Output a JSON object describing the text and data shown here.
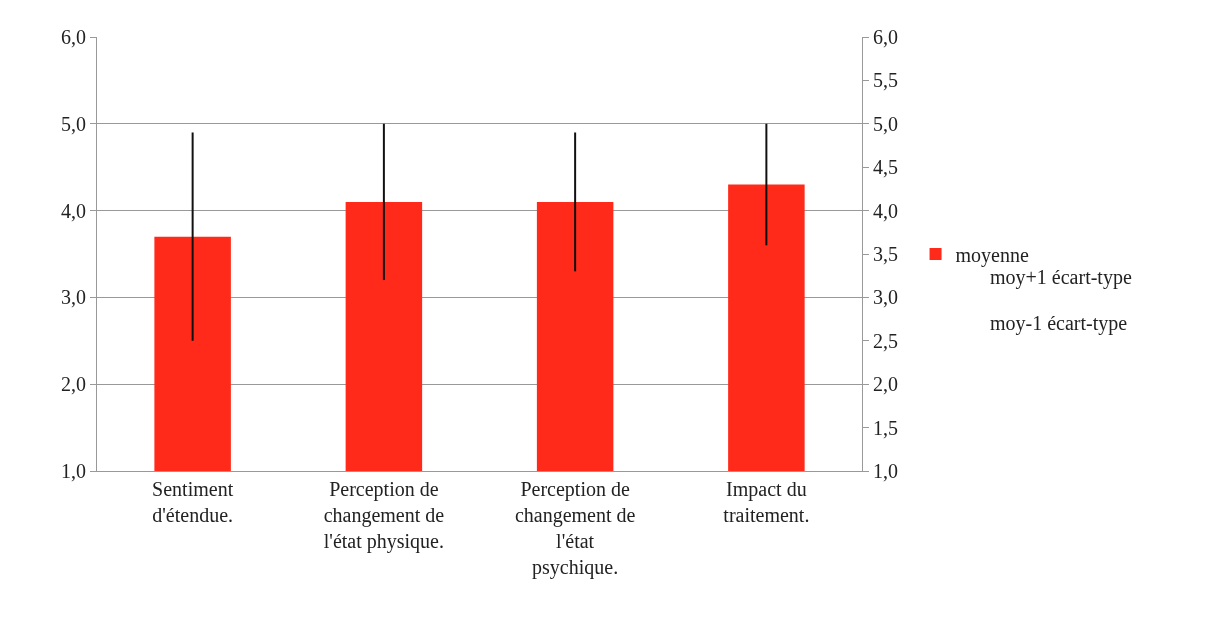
{
  "chart_data": {
    "type": "bar",
    "categories": [
      "Sentiment d'étendue.",
      "Perception de changement de l'état physique.",
      "Perception de changement de l'état psychique.",
      "Impact du traitement."
    ],
    "series": [
      {
        "name": "moyenne",
        "color": "#ff2a1a",
        "values": [
          3.7,
          4.1,
          4.1,
          4.3
        ],
        "errors": [
          [
            2.5,
            4.9
          ],
          [
            3.2,
            5.0
          ],
          [
            3.3,
            4.9
          ],
          [
            3.6,
            5.0
          ]
        ]
      }
    ],
    "ylim": [
      1,
      6
    ],
    "yticks": [
      {
        "value": 1,
        "label": "1,0"
      },
      {
        "value": 2,
        "label": "2,0"
      },
      {
        "value": 3,
        "label": "3,0"
      },
      {
        "value": 4,
        "label": "4,0"
      },
      {
        "value": 5,
        "label": "5,0"
      },
      {
        "value": 6,
        "label": "6,0"
      }
    ],
    "y2lim": [
      1,
      6
    ],
    "y2ticks": [
      {
        "value": 1,
        "label": "1,0"
      },
      {
        "value": 1.5,
        "label": "1,5"
      },
      {
        "value": 2,
        "label": "2,0"
      },
      {
        "value": 2.5,
        "label": "2,5"
      },
      {
        "value": 3,
        "label": "3,0"
      },
      {
        "value": 3.5,
        "label": "3,5"
      },
      {
        "value": 4,
        "label": "4,0"
      },
      {
        "value": 4.5,
        "label": "4,5"
      },
      {
        "value": 5,
        "label": "5,0"
      },
      {
        "value": 5.5,
        "label": "5,5"
      },
      {
        "value": 6,
        "label": "6,0"
      }
    ],
    "annotations": [
      "moy+1 écart-type",
      "moy-1 écart-type"
    ],
    "grid": "y",
    "legend": "right"
  }
}
